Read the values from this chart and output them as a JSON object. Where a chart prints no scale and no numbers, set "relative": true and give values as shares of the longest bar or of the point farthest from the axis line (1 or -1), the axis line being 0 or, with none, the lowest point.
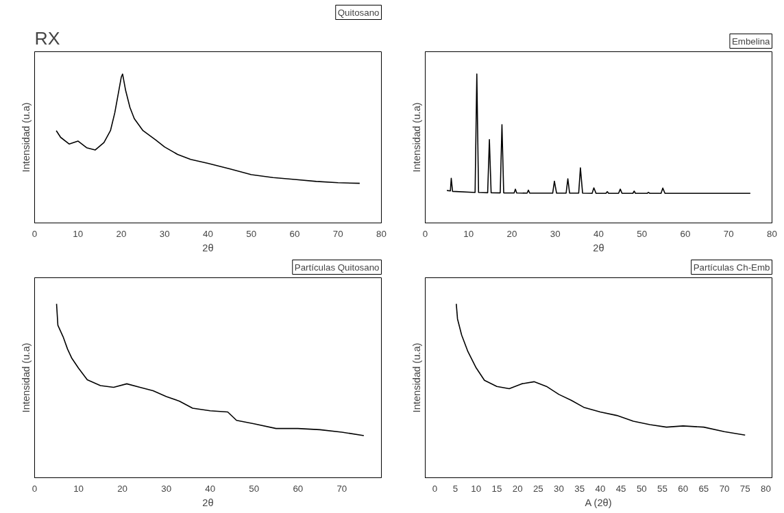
{
  "chart_data": [
    {
      "type": "line",
      "title": "Quitosano",
      "xlabel": "2θ",
      "ylabel": "Intensidad (u.a)",
      "relative": true,
      "tick_labels": "x",
      "annotations": [
        "RX"
      ],
      "xlim": [
        0,
        80
      ],
      "xticks": [
        0,
        10,
        20,
        30,
        40,
        50,
        60,
        70,
        80
      ],
      "series": [
        {
          "color": "#000000",
          "x": [
            5,
            6,
            8,
            10,
            12,
            14,
            16,
            17.5,
            18.5,
            19.5,
            20,
            20.3,
            21,
            22,
            23,
            25,
            28,
            30,
            33,
            36,
            40,
            45,
            50,
            55,
            60,
            65,
            70,
            75
          ],
          "values": [
            0.62,
            0.575,
            0.53,
            0.55,
            0.505,
            0.49,
            0.54,
            0.62,
            0.74,
            0.9,
            0.98,
            1.0,
            0.89,
            0.775,
            0.7,
            0.62,
            0.556,
            0.51,
            0.46,
            0.427,
            0.4,
            0.363,
            0.324,
            0.305,
            0.292,
            0.279,
            0.27,
            0.266
          ]
        }
      ]
    },
    {
      "type": "line",
      "title": "Embelina",
      "xlabel": "2θ",
      "ylabel": "Intensidad (u.a)",
      "relative": true,
      "tick_labels": "x",
      "xlim": [
        0,
        80
      ],
      "xticks": [
        0,
        10,
        20,
        30,
        40,
        50,
        60,
        70,
        80
      ],
      "series": [
        {
          "color": "#000000",
          "x": [
            5,
            5.8,
            6.0,
            6.3,
            11.5,
            11.9,
            12.3,
            14.4,
            14.8,
            15.2,
            17.3,
            17.7,
            18.1,
            20.5,
            20.8,
            21.1,
            23.5,
            23.8,
            24.1,
            29.4,
            29.8,
            30.3,
            32.5,
            32.9,
            33.3,
            35.4,
            35.8,
            36.3,
            38.5,
            38.9,
            39.4,
            41.7,
            42,
            42.3,
            44.6,
            45,
            45.4,
            47.9,
            48.2,
            48.5,
            51.2,
            51.5,
            51.8,
            54.4,
            54.8,
            55.3,
            75
          ],
          "values": [
            0.218,
            0.215,
            0.3,
            0.212,
            0.205,
            1.0,
            0.205,
            0.203,
            0.56,
            0.203,
            0.202,
            0.66,
            0.202,
            0.201,
            0.227,
            0.201,
            0.2,
            0.22,
            0.2,
            0.2,
            0.28,
            0.2,
            0.2,
            0.296,
            0.2,
            0.2,
            0.37,
            0.2,
            0.199,
            0.236,
            0.199,
            0.199,
            0.21,
            0.199,
            0.199,
            0.227,
            0.199,
            0.199,
            0.214,
            0.199,
            0.199,
            0.205,
            0.199,
            0.199,
            0.234,
            0.199,
            0.199
          ]
        }
      ]
    },
    {
      "type": "line",
      "title": "Partículas Quitosano",
      "xlabel": "2θ",
      "ylabel": "Intensidad (u.a)",
      "relative": true,
      "tick_labels": "x",
      "xlim": [
        0,
        79
      ],
      "xticks": [
        0,
        10,
        20,
        30,
        40,
        50,
        60,
        70
      ],
      "series": [
        {
          "color": "#000000",
          "x": [
            5,
            5.3,
            6.5,
            7.5,
            8.5,
            10,
            12,
            15,
            18,
            21,
            24,
            27,
            30,
            33,
            36,
            40,
            44,
            46,
            50,
            55,
            60,
            65,
            70,
            75
          ],
          "values": [
            1.0,
            0.877,
            0.81,
            0.74,
            0.686,
            0.63,
            0.563,
            0.53,
            0.52,
            0.54,
            0.52,
            0.5,
            0.467,
            0.44,
            0.4,
            0.385,
            0.378,
            0.33,
            0.31,
            0.283,
            0.283,
            0.276,
            0.262,
            0.242
          ]
        }
      ]
    },
    {
      "type": "line",
      "title": "Partículas Ch-Emb",
      "xlabel": "A (2θ)",
      "ylabel": "Intensidad (u.a)",
      "relative": true,
      "tick_labels": "x",
      "xlim": [
        -2.3,
        81.5
      ],
      "xticks": [
        0,
        5,
        10,
        15,
        20,
        25,
        30,
        35,
        40,
        45,
        50,
        55,
        60,
        65,
        70,
        75,
        80
      ],
      "series": [
        {
          "color": "#000000",
          "x": [
            5.2,
            5.5,
            6.5,
            8,
            10,
            12,
            15,
            18,
            21,
            24,
            27,
            30,
            33,
            36,
            40,
            44,
            48,
            52,
            56,
            60,
            65,
            70,
            75
          ],
          "values": [
            1.0,
            0.913,
            0.82,
            0.726,
            0.632,
            0.56,
            0.525,
            0.512,
            0.54,
            0.552,
            0.525,
            0.479,
            0.445,
            0.405,
            0.378,
            0.358,
            0.325,
            0.305,
            0.291,
            0.298,
            0.291,
            0.265,
            0.245
          ]
        }
      ]
    }
  ]
}
